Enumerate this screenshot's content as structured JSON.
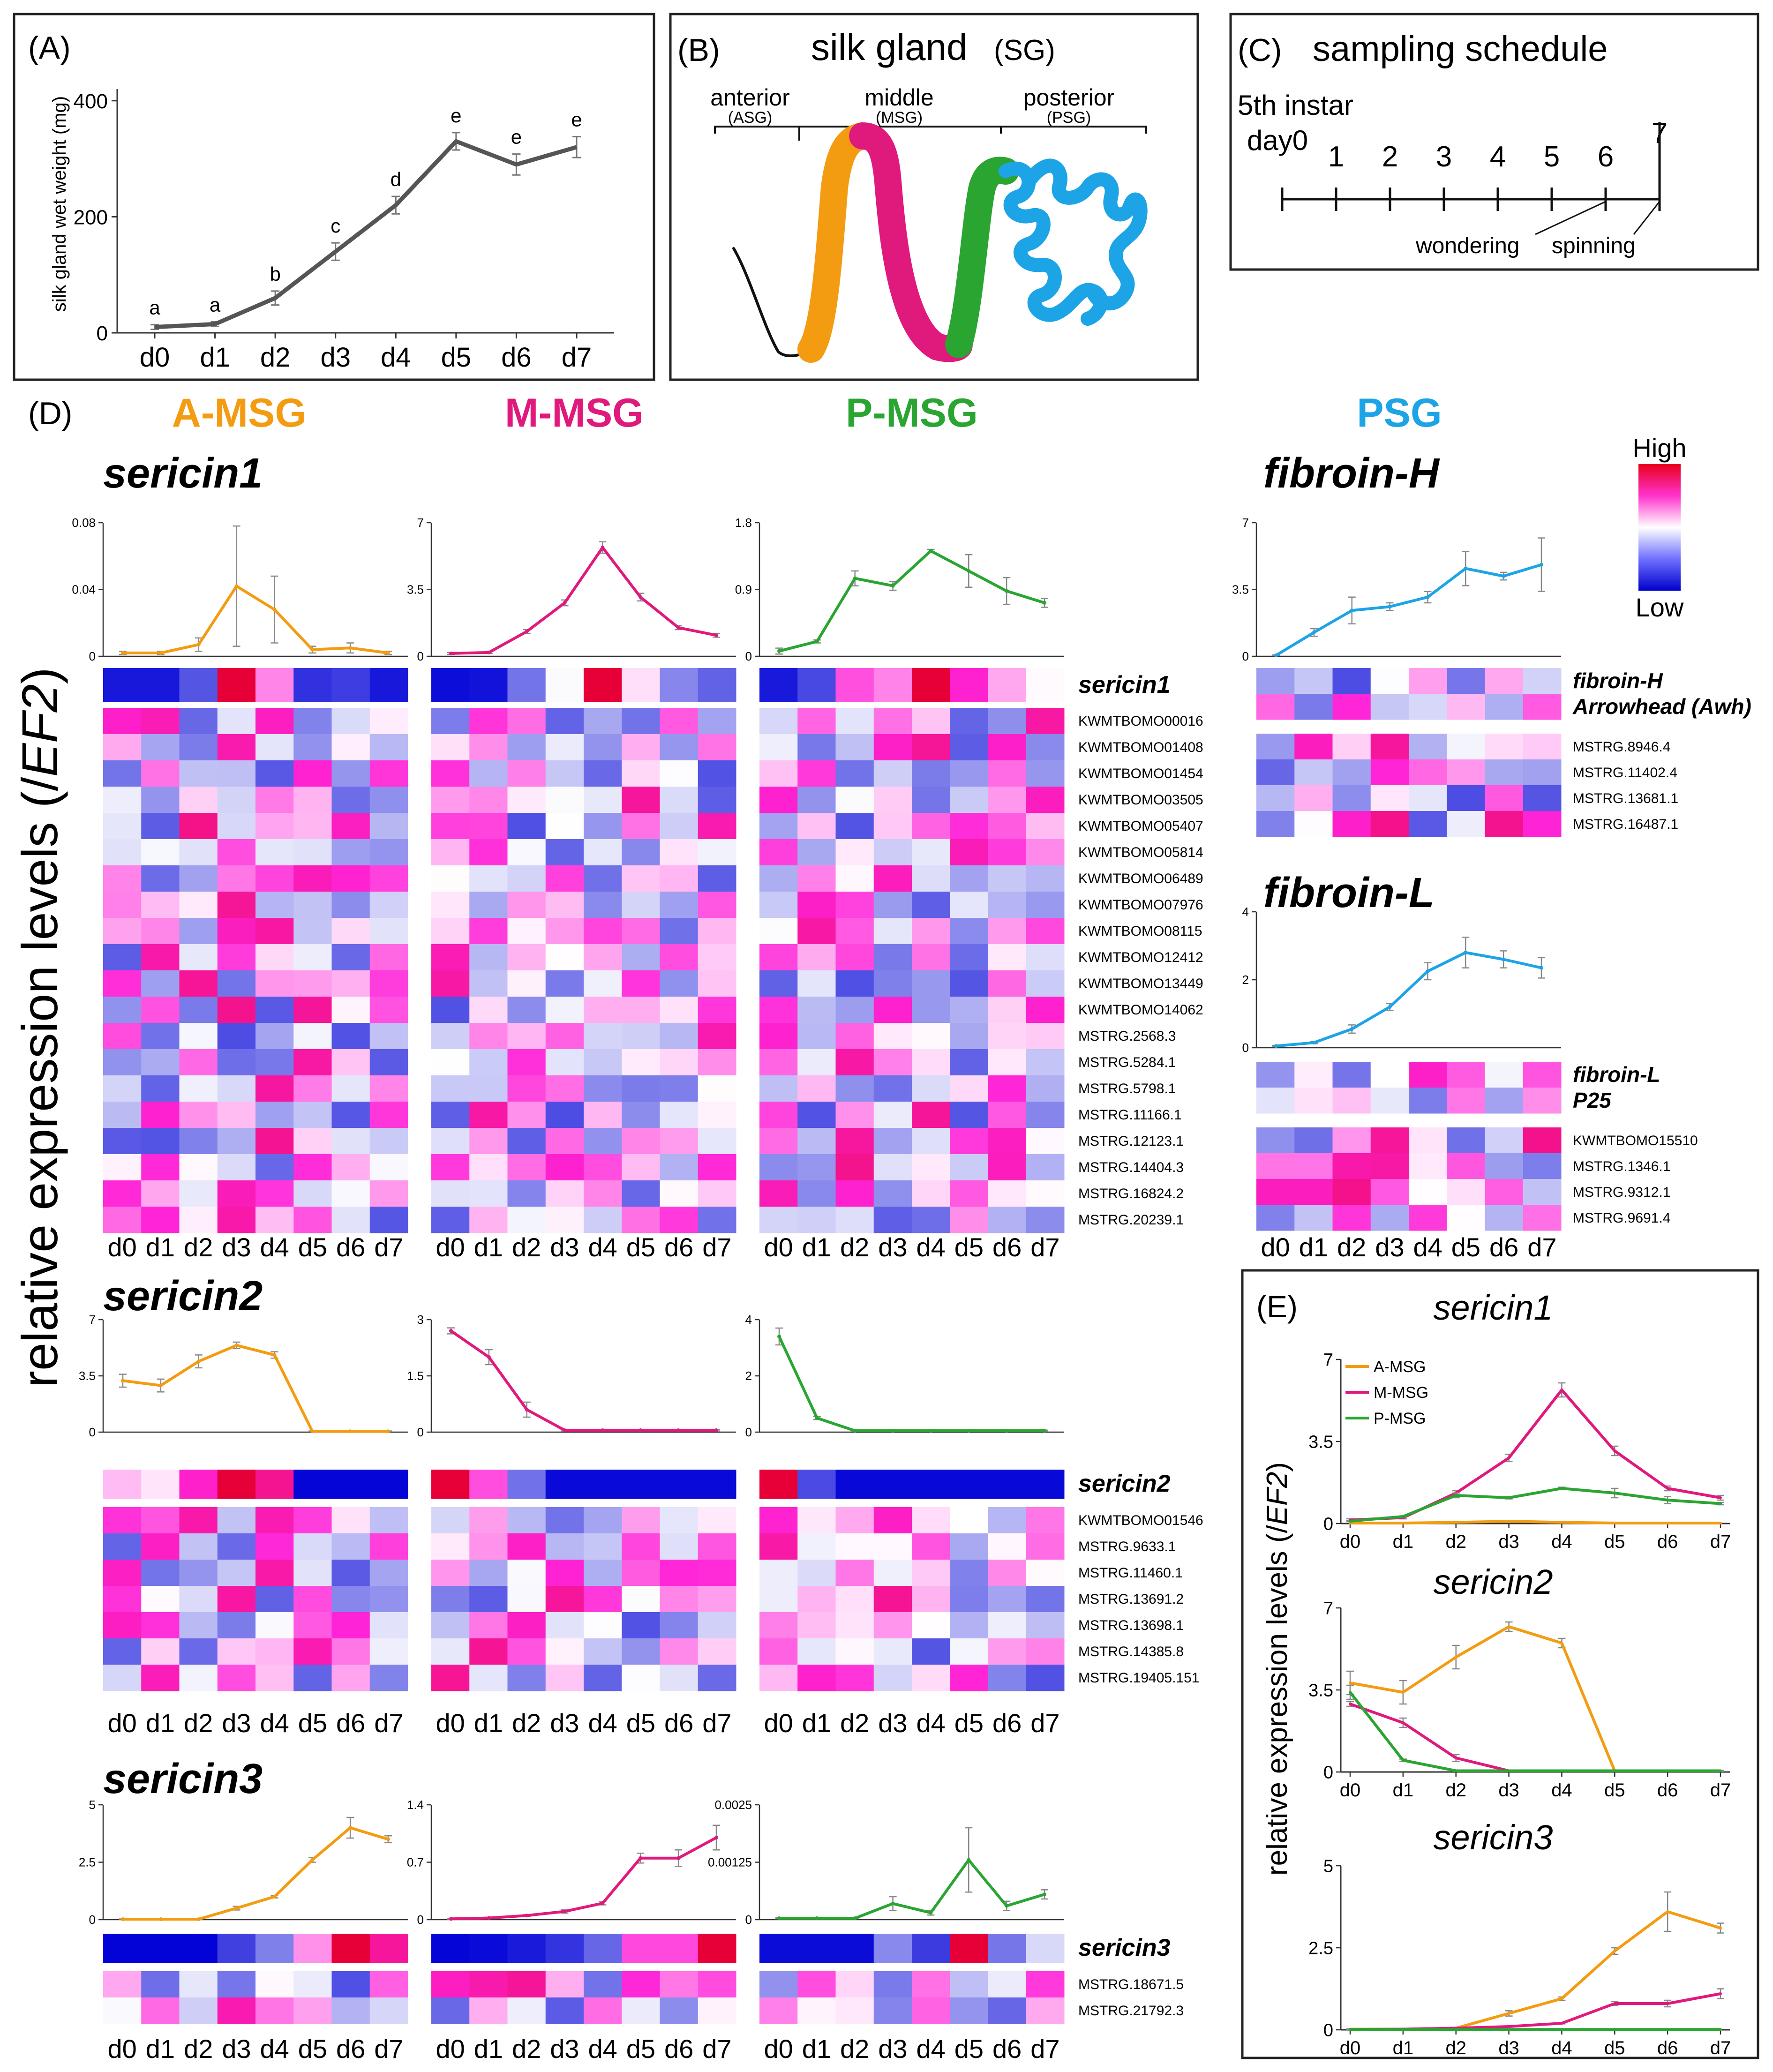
{
  "colors": {
    "amsg": "#f39c12",
    "mmsg": "#e0197d",
    "pmsg": "#2aa532",
    "psg": "#1ca4e6",
    "weight": "#555555",
    "frame": "#222222"
  },
  "panelA": {
    "letter": "(A)",
    "ylabel": "silk gland wet weight (mg)",
    "yticks": [
      "0",
      "200",
      "400"
    ],
    "days": [
      "d0",
      "d1",
      "d2",
      "d3",
      "d4",
      "d5",
      "d6",
      "d7"
    ],
    "values": [
      10,
      15,
      60,
      140,
      220,
      330,
      290,
      320
    ],
    "errors": [
      4,
      4,
      12,
      15,
      15,
      15,
      18,
      18
    ],
    "letters": [
      "a",
      "a",
      "b",
      "c",
      "d",
      "e",
      "e",
      "e"
    ],
    "ymax": 420
  },
  "panelB": {
    "letter": "(B)",
    "title": "silk gland",
    "abbr": "(SG)",
    "segments": [
      {
        "name": "anterior",
        "abbr": "(ASG)"
      },
      {
        "name": "middle",
        "abbr": "(MSG)"
      },
      {
        "name": "posterior",
        "abbr": "(PSG)"
      }
    ]
  },
  "panelC": {
    "letter": "(C)",
    "title": "sampling schedule",
    "instar": "5th instar",
    "day0": "day0",
    "ticks": [
      "1",
      "2",
      "3",
      "4",
      "5",
      "6",
      "7"
    ],
    "wondering": "wondering",
    "spinning": "spinning"
  },
  "panelD": {
    "letter": "(D)",
    "ylabel_main": "relative expression levels (/",
    "ylabel_ef": "EF2",
    "ylabel_close": ")",
    "tissues": [
      "A-MSG",
      "M-MSG",
      "P-MSG",
      "PSG"
    ],
    "legend": {
      "high": "High",
      "low": "Low"
    },
    "days": [
      "d0",
      "d1",
      "d2",
      "d3",
      "d4",
      "d5",
      "d6",
      "d7"
    ]
  },
  "genes": {
    "sericin1": {
      "title": "sericin1",
      "main_label": "sericin1",
      "others": [
        "KWMTBOMO00016",
        "KWMTBOMO01408",
        "KWMTBOMO01454",
        "KWMTBOMO03505",
        "KWMTBOMO05407",
        "KWMTBOMO05814",
        "KWMTBOMO06489",
        "KWMTBOMO07976",
        "KWMTBOMO08115",
        "KWMTBOMO12412",
        "KWMTBOMO13449",
        "KWMTBOMO14062",
        "MSTRG.2568.3",
        "MSTRG.5284.1",
        "MSTRG.5798.1",
        "MSTRG.11166.1",
        "MSTRG.12123.1",
        "MSTRG.14404.3",
        "MSTRG.16824.2",
        "MSTRG.20239.1"
      ]
    },
    "sericin2": {
      "title": "sericin2",
      "main_label": "sericin2",
      "others": [
        "KWMTBOMO01546",
        "MSTRG.9633.1",
        "MSTRG.11460.1",
        "MSTRG.13691.2",
        "MSTRG.13698.1",
        "MSTRG.14385.8",
        "MSTRG.19405.151"
      ]
    },
    "sericin3": {
      "title": "sericin3",
      "main_label": "sericin3",
      "others": [
        "MSTRG.18671.5",
        "MSTRG.21792.3"
      ]
    },
    "fibroinH": {
      "title": "fibroin-H",
      "main_labels": [
        "fibroin-H",
        "Arrowhead (Awh)"
      ],
      "others": [
        "MSTRG.8946.4",
        "MSTRG.11402.4",
        "MSTRG.13681.1",
        "MSTRG.16487.1"
      ]
    },
    "fibroinL": {
      "title": "fibroin-L",
      "main_labels": [
        "fibroin-L",
        "P25"
      ],
      "others": [
        "KWMTBOMO15510",
        "MSTRG.1346.1",
        "MSTRG.9312.1",
        "MSTRG.9691.4"
      ]
    }
  },
  "chart_data": [
    {
      "type": "line",
      "title": "(A) silk gland wet weight",
      "xlabel": "",
      "ylabel": "silk gland wet weight (mg)",
      "categories": [
        "d0",
        "d1",
        "d2",
        "d3",
        "d4",
        "d5",
        "d6",
        "d7"
      ],
      "values": [
        10,
        15,
        60,
        140,
        220,
        330,
        290,
        320
      ],
      "ylim": [
        0,
        420
      ]
    },
    {
      "type": "line",
      "title": "sericin1 A-MSG",
      "ylim": [
        0,
        0.08
      ],
      "yticks": [
        "0",
        "0.04",
        "0.08"
      ],
      "categories": [
        "d0",
        "d1",
        "d2",
        "d3",
        "d4",
        "d5",
        "d6",
        "d7"
      ],
      "values": [
        0.002,
        0.002,
        0.007,
        0.042,
        0.028,
        0.004,
        0.005,
        0.002
      ],
      "errors": [
        0.001,
        0.001,
        0.004,
        0.036,
        0.02,
        0.002,
        0.003,
        0.001
      ]
    },
    {
      "type": "line",
      "title": "sericin1 M-MSG",
      "ylim": [
        0,
        7
      ],
      "yticks": [
        "0",
        "3.5",
        "7"
      ],
      "categories": [
        "d0",
        "d1",
        "d2",
        "d3",
        "d4",
        "d5",
        "d6",
        "d7"
      ],
      "values": [
        0.15,
        0.2,
        1.3,
        2.8,
        5.7,
        3.1,
        1.5,
        1.1
      ],
      "errors": [
        0.05,
        0.05,
        0.1,
        0.15,
        0.3,
        0.2,
        0.1,
        0.1
      ]
    },
    {
      "type": "line",
      "title": "sericin1 P-MSG",
      "ylim": [
        0,
        1.8
      ],
      "yticks": [
        "0",
        "0.9",
        "1.8"
      ],
      "categories": [
        "d0",
        "d1",
        "d2",
        "d3",
        "d4",
        "d5",
        "d6",
        "d7"
      ],
      "values": [
        0.07,
        0.2,
        1.05,
        0.95,
        1.42,
        1.15,
        0.88,
        0.72
      ],
      "errors": [
        0.04,
        0.02,
        0.1,
        0.06,
        0.02,
        0.22,
        0.18,
        0.06
      ]
    },
    {
      "type": "line",
      "title": "fibroin-H PSG",
      "ylim": [
        0,
        7
      ],
      "yticks": [
        "0",
        "3.5",
        "7"
      ],
      "categories": [
        "d0",
        "d1",
        "d2",
        "d3",
        "d4",
        "d5",
        "d6",
        "d7"
      ],
      "values": [
        0.05,
        1.25,
        2.4,
        2.6,
        3.1,
        4.6,
        4.2,
        4.8
      ],
      "errors": [
        0.02,
        0.2,
        0.7,
        0.2,
        0.3,
        0.9,
        0.2,
        1.4
      ]
    },
    {
      "type": "line",
      "title": "fibroin-L PSG",
      "ylim": [
        0,
        4
      ],
      "yticks": [
        "0",
        "2",
        "4"
      ],
      "categories": [
        "d0",
        "d1",
        "d2",
        "d3",
        "d4",
        "d5",
        "d6",
        "d7"
      ],
      "values": [
        0.05,
        0.15,
        0.55,
        1.2,
        2.25,
        2.8,
        2.6,
        2.35
      ],
      "errors": [
        0.02,
        0.03,
        0.12,
        0.1,
        0.25,
        0.45,
        0.25,
        0.3
      ]
    },
    {
      "type": "line",
      "title": "sericin2 A-MSG",
      "ylim": [
        0,
        7
      ],
      "yticks": [
        "0",
        "3.5",
        "7"
      ],
      "categories": [
        "d0",
        "d1",
        "d2",
        "d3",
        "d4",
        "d5",
        "d6",
        "d7"
      ],
      "values": [
        3.2,
        2.9,
        4.4,
        5.4,
        4.8,
        0.05,
        0.05,
        0.05
      ],
      "errors": [
        0.4,
        0.4,
        0.4,
        0.2,
        0.2,
        0.02,
        0.02,
        0.02
      ]
    },
    {
      "type": "line",
      "title": "sericin2 M-MSG",
      "ylim": [
        0,
        3
      ],
      "yticks": [
        "0",
        "1.5",
        "3"
      ],
      "categories": [
        "d0",
        "d1",
        "d2",
        "d3",
        "d4",
        "d5",
        "d6",
        "d7"
      ],
      "values": [
        2.7,
        2.0,
        0.6,
        0.05,
        0.05,
        0.05,
        0.05,
        0.05
      ],
      "errors": [
        0.08,
        0.2,
        0.2,
        0.02,
        0.02,
        0.02,
        0.02,
        0.02
      ]
    },
    {
      "type": "line",
      "title": "sericin2 P-MSG",
      "ylim": [
        0,
        4
      ],
      "yticks": [
        "0",
        "2",
        "4"
      ],
      "categories": [
        "d0",
        "d1",
        "d2",
        "d3",
        "d4",
        "d5",
        "d6",
        "d7"
      ],
      "values": [
        3.4,
        0.5,
        0.05,
        0.05,
        0.05,
        0.05,
        0.05,
        0.05
      ],
      "errors": [
        0.3,
        0.05,
        0.02,
        0.02,
        0.02,
        0.02,
        0.02,
        0.02
      ]
    },
    {
      "type": "line",
      "title": "sericin3 A-MSG",
      "ylim": [
        0,
        5
      ],
      "yticks": [
        "0",
        "2.5",
        "5"
      ],
      "categories": [
        "d0",
        "d1",
        "d2",
        "d3",
        "d4",
        "d5",
        "d6",
        "d7"
      ],
      "values": [
        0.02,
        0.02,
        0.02,
        0.5,
        1.0,
        2.6,
        4.0,
        3.5
      ],
      "errors": [
        0.01,
        0.01,
        0.01,
        0.08,
        0.05,
        0.1,
        0.45,
        0.15
      ]
    },
    {
      "type": "line",
      "title": "sericin3 M-MSG",
      "ylim": [
        0,
        1.4
      ],
      "yticks": [
        "0",
        "0.7",
        "1.4"
      ],
      "categories": [
        "d0",
        "d1",
        "d2",
        "d3",
        "d4",
        "d5",
        "d6",
        "d7"
      ],
      "values": [
        0.01,
        0.02,
        0.05,
        0.1,
        0.2,
        0.75,
        0.75,
        1.0
      ],
      "errors": [
        0.005,
        0.005,
        0.01,
        0.02,
        0.02,
        0.06,
        0.1,
        0.15
      ]
    },
    {
      "type": "line",
      "title": "sericin3 P-MSG",
      "ylim": [
        0,
        0.0025
      ],
      "yticks": [
        "0",
        "0.00125",
        "0.0025"
      ],
      "categories": [
        "d0",
        "d1",
        "d2",
        "d3",
        "d4",
        "d5",
        "d6",
        "d7"
      ],
      "values": [
        3e-05,
        3e-05,
        3e-05,
        0.00035,
        0.00015,
        0.0013,
        0.0003,
        0.00055
      ],
      "errors": [
        1e-05,
        1e-05,
        1e-05,
        0.00015,
        5e-05,
        0.0007,
        0.0001,
        0.0001
      ]
    },
    {
      "type": "line",
      "title": "(E) sericin1",
      "ylabel": "relative expression levels (/EF2)",
      "ylim": [
        0,
        7
      ],
      "yticks": [
        "0",
        "3.5",
        "7"
      ],
      "categories": [
        "d0",
        "d1",
        "d2",
        "d3",
        "d4",
        "d5",
        "d6",
        "d7"
      ],
      "legend": [
        "A-MSG",
        "M-MSG",
        "P-MSG"
      ],
      "series": [
        {
          "name": "A-MSG",
          "values": [
            0.02,
            0.02,
            0.05,
            0.1,
            0.05,
            0.02,
            0.02,
            0.02
          ],
          "errors": [
            0,
            0,
            0,
            0,
            0,
            0,
            0,
            0
          ]
        },
        {
          "name": "M-MSG",
          "values": [
            0.15,
            0.25,
            1.3,
            2.8,
            5.7,
            3.1,
            1.5,
            1.1
          ],
          "errors": [
            0.05,
            0.05,
            0.1,
            0.15,
            0.3,
            0.2,
            0.1,
            0.1
          ]
        },
        {
          "name": "P-MSG",
          "values": [
            0.1,
            0.3,
            1.2,
            1.1,
            1.5,
            1.3,
            1.0,
            0.85
          ],
          "errors": [
            0.02,
            0.02,
            0.1,
            0.05,
            0.05,
            0.2,
            0.15,
            0.05
          ]
        }
      ]
    },
    {
      "type": "line",
      "title": "(E) sericin2",
      "ylim": [
        0,
        7
      ],
      "yticks": [
        "0",
        "3.5",
        "7"
      ],
      "categories": [
        "d0",
        "d1",
        "d2",
        "d3",
        "d4",
        "d5",
        "d6",
        "d7"
      ],
      "series": [
        {
          "name": "A-MSG",
          "values": [
            3.8,
            3.4,
            4.9,
            6.2,
            5.5,
            0.05,
            0.05,
            0.05
          ],
          "errors": [
            0.5,
            0.5,
            0.5,
            0.2,
            0.2,
            0.02,
            0.02,
            0.02
          ]
        },
        {
          "name": "M-MSG",
          "values": [
            2.9,
            2.1,
            0.6,
            0.05,
            0.05,
            0.05,
            0.05,
            0.05
          ],
          "errors": [
            0.1,
            0.2,
            0.15,
            0.02,
            0.02,
            0.02,
            0.02,
            0.02
          ]
        },
        {
          "name": "P-MSG",
          "values": [
            3.4,
            0.5,
            0.05,
            0.05,
            0.05,
            0.05,
            0.05,
            0.05
          ],
          "errors": [
            0.3,
            0.05,
            0.02,
            0.02,
            0.02,
            0.02,
            0.02,
            0.02
          ]
        }
      ]
    },
    {
      "type": "line",
      "title": "(E) sericin3",
      "ylim": [
        0,
        5
      ],
      "yticks": [
        "0",
        "2.5",
        "5"
      ],
      "categories": [
        "d0",
        "d1",
        "d2",
        "d3",
        "d4",
        "d5",
        "d6",
        "d7"
      ],
      "series": [
        {
          "name": "A-MSG",
          "values": [
            0.02,
            0.02,
            0.05,
            0.5,
            0.95,
            2.4,
            3.6,
            3.1
          ],
          "errors": [
            0.01,
            0.01,
            0.01,
            0.08,
            0.05,
            0.1,
            0.6,
            0.15
          ]
        },
        {
          "name": "M-MSG",
          "values": [
            0.01,
            0.02,
            0.05,
            0.1,
            0.2,
            0.8,
            0.8,
            1.1
          ],
          "errors": [
            0.005,
            0.005,
            0.01,
            0.02,
            0.02,
            0.06,
            0.1,
            0.15
          ]
        },
        {
          "name": "P-MSG",
          "values": [
            0.01,
            0.01,
            0.01,
            0.01,
            0.01,
            0.01,
            0.01,
            0.01
          ],
          "errors": [
            0,
            0,
            0,
            0,
            0,
            0,
            0,
            0
          ]
        }
      ]
    }
  ]
}
